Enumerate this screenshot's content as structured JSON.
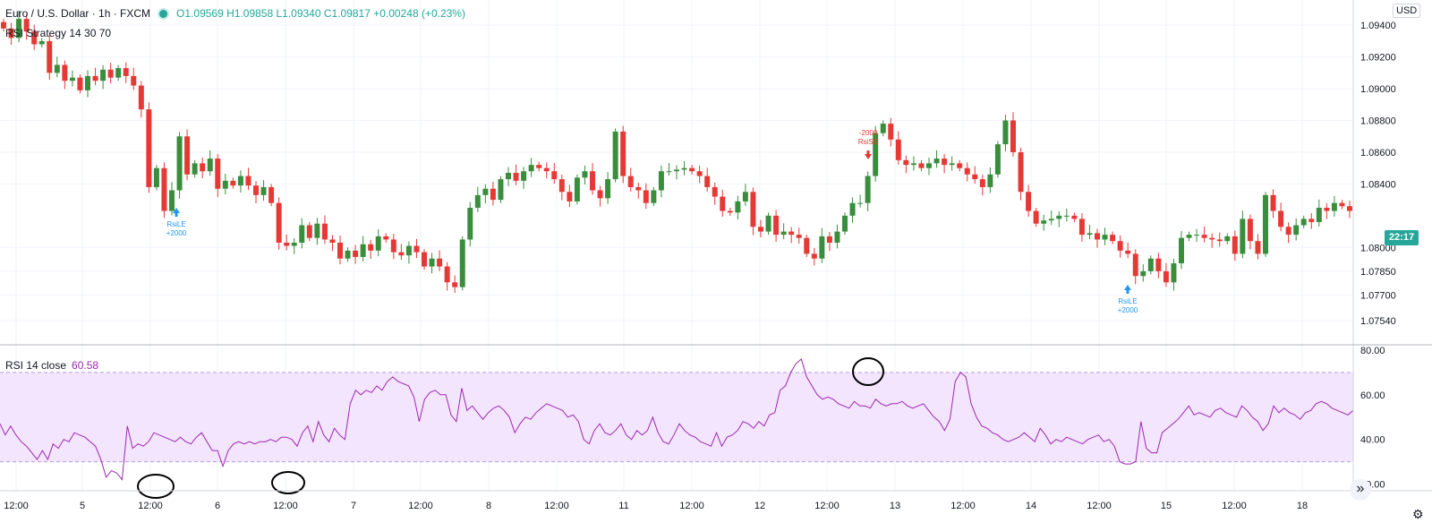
{
  "header": {
    "symbol_title": "Euro / U.S. Dollar · 1h · FXCM",
    "ohlc": "O1.09569 H1.09858 L1.09340 C1.09817 +0.00248 (+0.23%)",
    "strategy": "RSI Strategy 14 30 70"
  },
  "rsi_legend": {
    "label": "RSI 14 close",
    "value": "60.58"
  },
  "currency_button": "USD",
  "last_price_badge": "22:17",
  "scroll_forward_icon": "double-chevron-right-icon",
  "settings_icon": "gear-icon",
  "colors": {
    "up": "#388e3c",
    "down": "#e53935",
    "rsi": "#9c27b0",
    "band": "#f3e5fd",
    "signal_long": "#2196f3",
    "signal_short": "#e53935"
  },
  "chart_data": [
    {
      "type": "candlestick",
      "title": "Euro / U.S. Dollar · 1h · FXCM",
      "y_ticks": [
        "1.09400",
        "1.09200",
        "1.09000",
        "1.08800",
        "1.08600",
        "1.08400",
        "1.08000",
        "1.07850",
        "1.07700",
        "1.07540"
      ],
      "ylim": [
        1.0746,
        1.0948
      ],
      "x_ticks": [
        "12:00",
        "5",
        "12:00",
        "6",
        "12:00",
        "7",
        "12:00",
        "8",
        "12:00",
        "11",
        "12:00",
        "12",
        "12:00",
        "13",
        "12:00",
        "14",
        "12:00",
        "15",
        "12:00",
        "18"
      ],
      "close_series": [
        1.0938,
        1.0932,
        1.0944,
        1.0936,
        1.0928,
        1.093,
        1.091,
        1.0915,
        1.0905,
        1.0907,
        1.0899,
        1.0908,
        1.0905,
        1.0912,
        1.0907,
        1.0913,
        1.0908,
        1.0902,
        1.0887,
        1.0838,
        1.085,
        1.0823,
        1.0836,
        1.087,
        1.0846,
        1.0853,
        1.0848,
        1.0856,
        1.0837,
        1.0842,
        1.0839,
        1.0845,
        1.0839,
        1.0833,
        1.0838,
        1.0828,
        1.0803,
        1.0801,
        1.0803,
        1.0814,
        1.0806,
        1.0815,
        1.0805,
        1.0803,
        1.0793,
        1.0798,
        1.0794,
        1.0802,
        1.0798,
        1.0807,
        1.0805,
        1.0797,
        1.0795,
        1.0801,
        1.0797,
        1.0788,
        1.0793,
        1.0788,
        1.0778,
        1.0775,
        1.0805,
        1.0825,
        1.0833,
        1.0837,
        1.083,
        1.0843,
        1.0847,
        1.0842,
        1.0848,
        1.0852,
        1.085,
        1.0848,
        1.0843,
        1.0835,
        1.0829,
        1.0844,
        1.0848,
        1.0836,
        1.0831,
        1.0843,
        1.0873,
        1.0845,
        1.0838,
        1.0836,
        1.0828,
        1.0836,
        1.0848,
        1.0848,
        1.0849,
        1.085,
        1.0848,
        1.0845,
        1.0838,
        1.0832,
        1.0823,
        1.0822,
        1.0829,
        1.0835,
        1.0813,
        1.081,
        1.082,
        1.0808,
        1.081,
        1.0808,
        1.0806,
        1.0796,
        1.0793,
        1.0807,
        1.0803,
        1.081,
        1.082,
        1.0828,
        1.0828,
        1.0845,
        1.0872,
        1.0878,
        1.0868,
        1.0855,
        1.0852,
        1.0853,
        1.085,
        1.0853,
        1.0856,
        1.0852,
        1.0853,
        1.085,
        1.0846,
        1.0843,
        1.0838,
        1.0846,
        1.0865,
        1.088,
        1.086,
        1.0835,
        1.0823,
        1.0815,
        1.0817,
        1.0818,
        1.082,
        1.082,
        1.0818,
        1.0808,
        1.0809,
        1.0805,
        1.0808,
        1.0804,
        1.0798,
        1.0796,
        1.0782,
        1.0785,
        1.0793,
        1.0785,
        1.0778,
        1.079,
        1.0806,
        1.0808,
        1.0808,
        1.0806,
        1.0805,
        1.0804,
        1.0807,
        1.0796,
        1.0818,
        1.0804,
        1.0796,
        1.0833,
        1.0823,
        1.0813,
        1.0808,
        1.0814,
        1.0818,
        1.0816,
        1.0825,
        1.0823,
        1.0828,
        1.0826,
        1.0823
      ]
    },
    {
      "type": "line",
      "title": "RSI 14 close",
      "y_ticks": [
        "80.00",
        "60.00",
        "40.00",
        "20.00"
      ],
      "ylim": [
        17,
        82
      ],
      "band": [
        30,
        70
      ],
      "values": [
        47,
        42,
        46,
        42,
        39,
        37,
        34,
        31,
        35,
        31,
        38,
        36,
        40,
        39,
        43,
        42,
        41,
        39,
        37,
        31,
        23,
        26,
        25,
        22,
        46,
        36,
        38,
        37,
        39,
        43,
        42,
        41,
        40,
        39,
        41,
        39,
        38,
        41,
        43,
        39,
        35,
        35,
        28,
        35,
        38,
        39,
        38,
        39,
        38,
        39,
        39,
        40,
        39,
        41,
        41,
        40,
        37,
        43,
        46,
        39,
        48,
        42,
        39,
        45,
        42,
        40,
        56,
        62,
        60,
        62,
        61,
        64,
        62,
        66,
        68,
        66,
        65,
        64,
        59,
        48,
        58,
        61,
        62,
        60,
        60,
        51,
        48,
        63,
        53,
        55,
        52,
        49,
        52,
        54,
        55,
        53,
        50,
        43,
        47,
        50,
        49,
        52,
        54,
        56,
        55,
        54,
        53,
        50,
        51,
        48,
        40,
        38,
        44,
        47,
        43,
        42,
        44,
        47,
        42,
        40,
        44,
        42,
        44,
        50,
        43,
        39,
        38,
        42,
        47,
        44,
        42,
        41,
        39,
        38,
        37,
        43,
        37,
        41,
        42,
        44,
        48,
        47,
        45,
        48,
        46,
        51,
        52,
        62,
        64,
        70,
        74,
        76,
        68,
        64,
        60,
        58,
        59,
        58,
        56,
        55,
        54,
        57,
        55,
        55,
        54,
        58,
        56,
        55,
        56,
        56,
        57,
        55,
        54,
        55,
        56,
        53,
        50,
        48,
        44,
        49,
        66,
        70,
        68,
        56,
        50,
        46,
        45,
        43,
        42,
        40,
        39,
        40,
        41,
        43,
        41,
        39,
        45,
        42,
        38,
        40,
        39,
        41,
        40,
        39,
        38,
        40,
        41,
        42,
        39,
        40,
        37,
        30,
        29,
        29,
        30,
        48,
        36,
        34,
        34,
        43,
        45,
        47,
        49,
        52,
        55,
        51,
        52,
        51,
        50,
        53,
        54,
        52,
        51,
        50,
        55,
        53,
        50,
        48,
        44,
        47,
        55,
        52,
        54,
        52,
        51,
        49,
        52,
        53,
        56,
        57,
        56,
        54,
        53,
        52,
        51,
        53
      ]
    }
  ],
  "signals": [
    {
      "label": "RsiLE",
      "qty": "+2000",
      "type": "long"
    },
    {
      "label": "RsiSE",
      "qty": "-2000",
      "type": "short"
    },
    {
      "label": "RsiLE",
      "qty": "+2000",
      "type": "long"
    }
  ]
}
